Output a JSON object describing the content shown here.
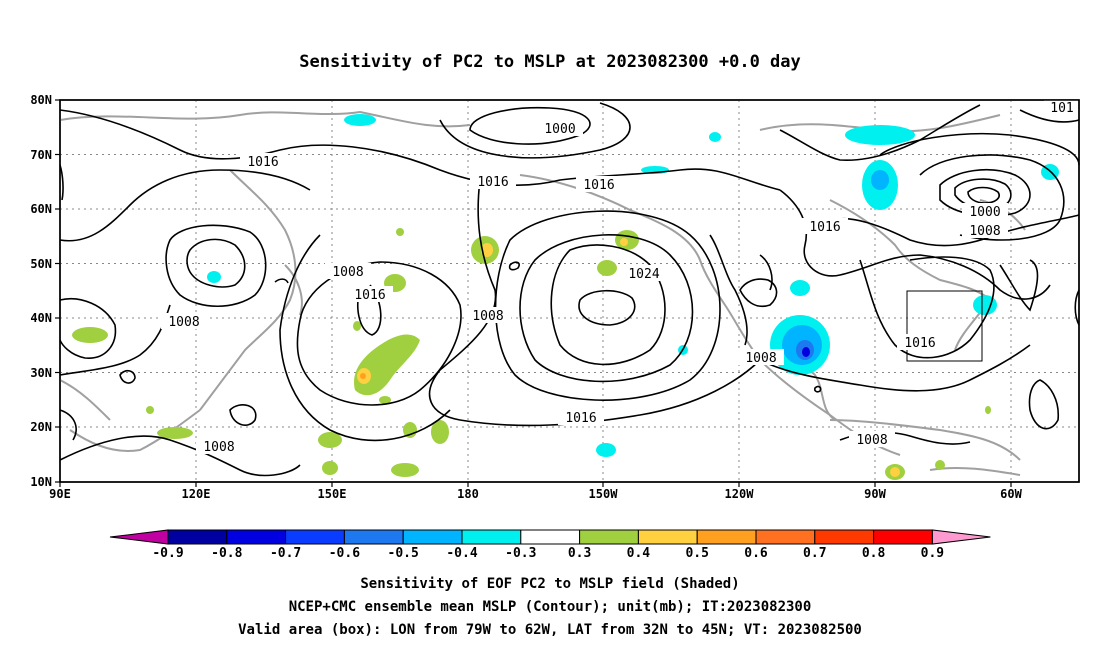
{
  "title": "Sensitivity of PC2 to MSLP at 2023082300 +0.0 day",
  "map": {
    "lon_ticks": [
      "90E",
      "120E",
      "150E",
      "180",
      "150W",
      "120W",
      "90W",
      "60W"
    ],
    "lat_ticks": [
      "80N",
      "70N",
      "60N",
      "50N",
      "40N",
      "30N",
      "20N",
      "10N"
    ],
    "contour_labels": [
      "1000",
      "101",
      "1016",
      "1016",
      "1016",
      "1000",
      "1008",
      "1016",
      "1008",
      "1024",
      "1016",
      "1008",
      "1008",
      "1008",
      "1016",
      "1016",
      "1008",
      "1008"
    ],
    "box": {
      "lon": [
        "79W",
        "62W"
      ],
      "lat": [
        "32N",
        "45N"
      ]
    }
  },
  "colorbar": {
    "labels": [
      "-0.9",
      "-0.8",
      "-0.7",
      "-0.6",
      "-0.5",
      "-0.4",
      "-0.3",
      "0.3",
      "0.4",
      "0.5",
      "0.6",
      "0.7",
      "0.8",
      "0.9"
    ],
    "colors": [
      "#c000a0",
      "#0000a0",
      "#0000e0",
      "#0a3cff",
      "#1e78f0",
      "#00b4ff",
      "#00f0f0",
      "#ffffff",
      "#a0d040",
      "#ffd040",
      "#ffa020",
      "#ff7020",
      "#ff3a00",
      "#ff0000",
      "#ff9ad0"
    ]
  },
  "captions": {
    "line1": "Sensitivity of EOF PC2 to MSLP field (Shaded)",
    "line2": "NCEP+CMC ensemble mean MSLP (Contour); unit(mb); IT:2023082300",
    "line3": "Valid area (box): LON from 79W to 62W, LAT from 32N to 45N; VT: 2023082500"
  }
}
